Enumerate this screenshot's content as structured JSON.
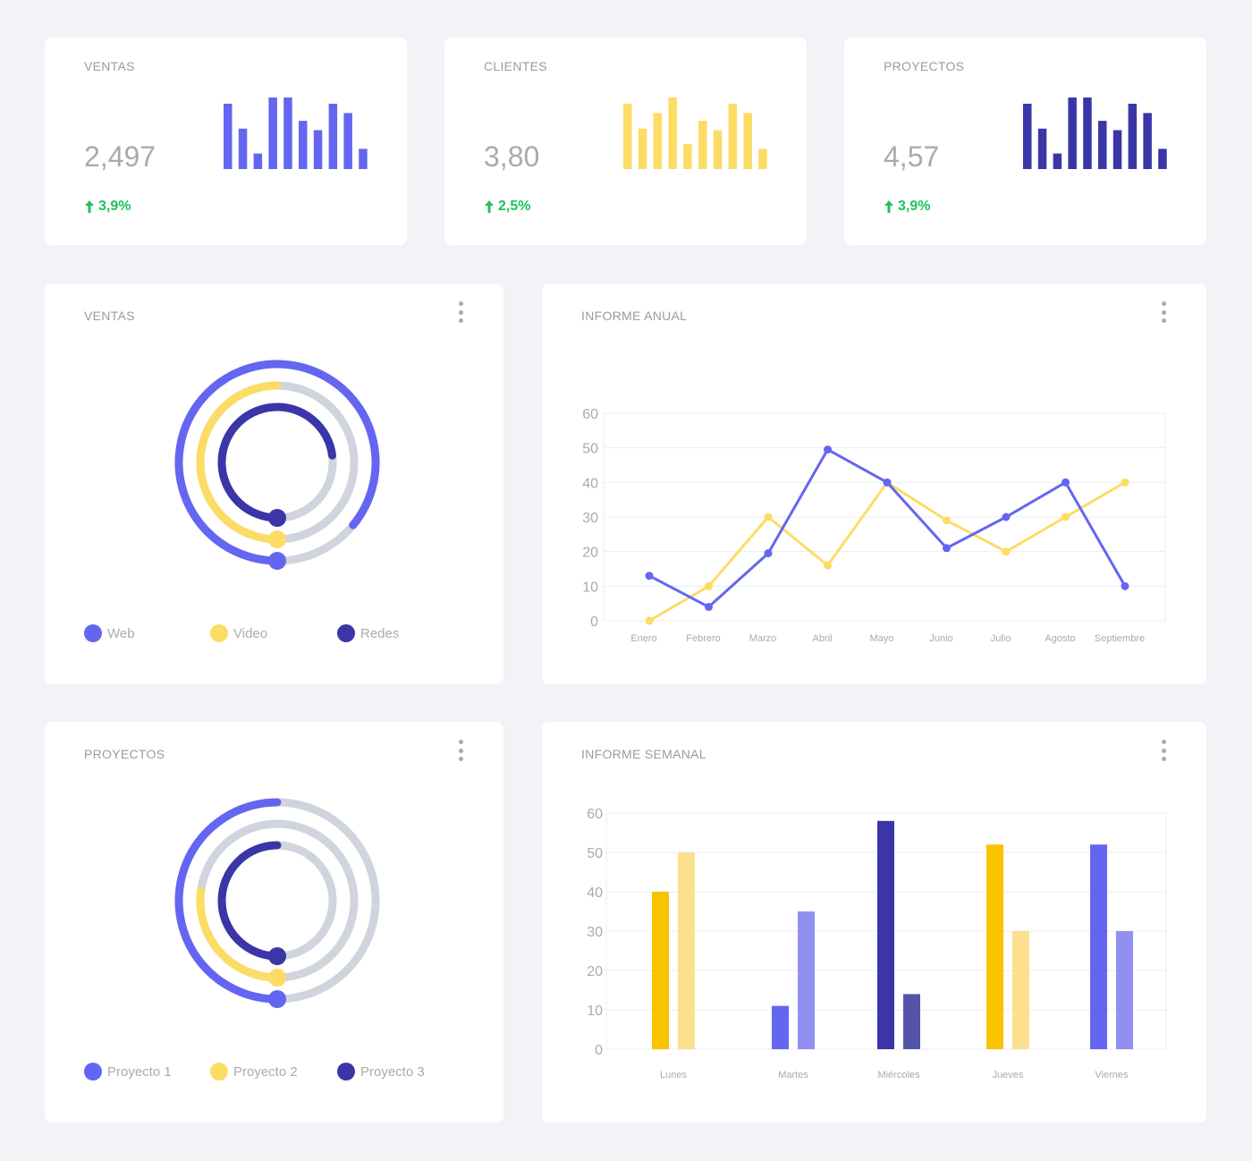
{
  "colors": {
    "blue": "#6466f1",
    "yellow": "#fddc66",
    "navy": "#3a36a8",
    "track": "#d0d4dc",
    "green": "#1ec25c",
    "bar_yellow_dark": "#f9c300",
    "bar_yellow_light": "#fde08e",
    "bar_blue_light": "#9190f0",
    "bar_navy_light": "#5555a8"
  },
  "stats": [
    {
      "title": "VENTAS",
      "value": "2,497",
      "change": "3,9%",
      "color": "#6466f1",
      "bars": [
        42,
        26,
        10,
        46,
        46,
        31,
        25,
        42,
        36,
        13
      ]
    },
    {
      "title": "CLIENTES",
      "value": "3,80",
      "change": "2,5%",
      "color": "#fddc66",
      "bars": [
        42,
        26,
        36,
        46,
        16,
        31,
        25,
        42,
        36,
        13
      ]
    },
    {
      "title": "PROYECTOS",
      "value": "4,57",
      "change": "3,9%",
      "color": "#3a36a8",
      "bars": [
        42,
        26,
        10,
        46,
        46,
        31,
        25,
        42,
        36,
        13
      ]
    }
  ],
  "ventas_donut": {
    "title": "VENTAS",
    "menu_icon": "more-vertical-icon",
    "rings": [
      {
        "name": "Web",
        "fraction": 0.86,
        "color": "#6466f1"
      },
      {
        "name": "Video",
        "fraction": 0.5,
        "color": "#fddc66"
      },
      {
        "name": "Redes",
        "fraction": 0.73,
        "color": "#3a36a8"
      }
    ]
  },
  "proyectos_donut": {
    "title": "PROYECTOS",
    "menu_icon": "more-vertical-icon",
    "rings": [
      {
        "name": "Proyecto 1",
        "fraction": 0.5,
        "color": "#6466f1"
      },
      {
        "name": "Proyecto 2",
        "fraction": 0.27,
        "color": "#fddc66"
      },
      {
        "name": "Proyecto 3",
        "fraction": 0.5,
        "color": "#3a36a8"
      }
    ]
  },
  "chart_data": [
    {
      "type": "line",
      "title": "INFORME ANUAL",
      "categories": [
        "Enero",
        "Febrero",
        "Marzo",
        "Abril",
        "Mayo",
        "Junio",
        "Julio",
        "Agosto",
        "Septiembre"
      ],
      "ylim": [
        0,
        60
      ],
      "yticks": [
        0,
        10,
        20,
        30,
        40,
        50,
        60
      ],
      "grid": true,
      "series": [
        {
          "color": "#fddc66",
          "values": [
            0,
            10,
            30,
            16,
            40,
            29,
            20,
            30,
            40
          ]
        },
        {
          "color": "#6466f1",
          "values": [
            13,
            4,
            19.5,
            49.5,
            40,
            21,
            30,
            40,
            10
          ]
        }
      ]
    },
    {
      "type": "bar",
      "title": "INFORME SEMANAL",
      "categories": [
        "Lunes",
        "Martes",
        "Miércoles",
        "Jueves",
        "Viernes"
      ],
      "ylim": [
        0,
        60
      ],
      "yticks": [
        0,
        10,
        20,
        30,
        40,
        50,
        60
      ],
      "grid": true,
      "bar_pairs": [
        {
          "values": [
            40,
            50
          ],
          "colors": [
            "#f9c300",
            "#fde08e"
          ]
        },
        {
          "values": [
            11,
            35
          ],
          "colors": [
            "#6466f1",
            "#9190f0"
          ]
        },
        {
          "values": [
            58,
            14
          ],
          "colors": [
            "#3a36a8",
            "#5555a8"
          ]
        },
        {
          "values": [
            52,
            30
          ],
          "colors": [
            "#f9c300",
            "#fde08e"
          ]
        },
        {
          "values": [
            52,
            30
          ],
          "colors": [
            "#6466f1",
            "#9190f0"
          ]
        }
      ]
    }
  ]
}
